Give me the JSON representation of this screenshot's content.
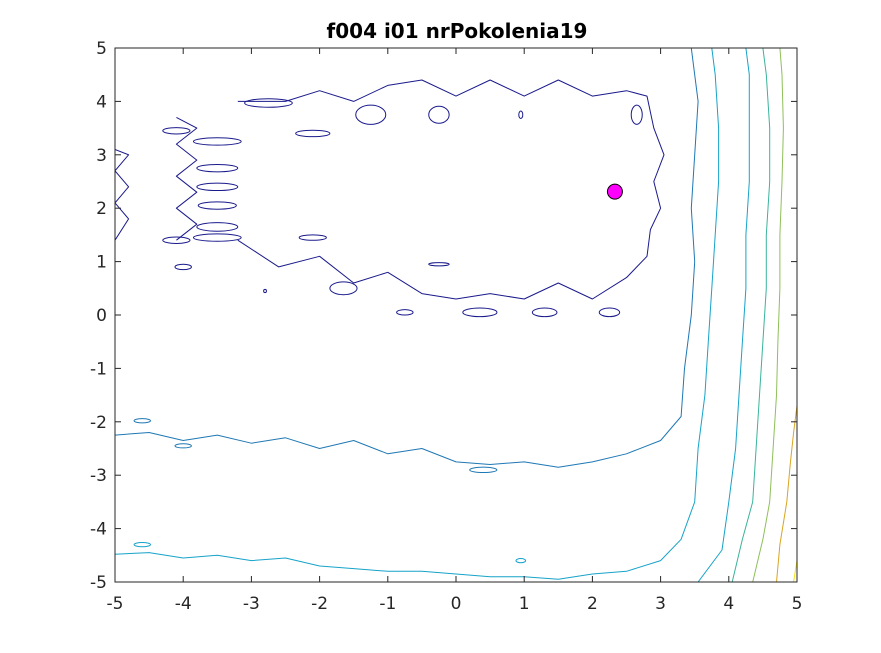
{
  "chart_data": {
    "type": "contour",
    "title": "f004 i01 nrPokolenia19",
    "xlabel": "",
    "ylabel": "",
    "xlim": [
      -5,
      5
    ],
    "ylim": [
      -5,
      5
    ],
    "xticks": [
      "-5",
      "-4",
      "-3",
      "-2",
      "-1",
      "0",
      "1",
      "2",
      "3",
      "4",
      "5"
    ],
    "yticks": [
      "5",
      "4",
      "3",
      "2",
      "1",
      "0",
      "-1",
      "-2",
      "-3",
      "-4",
      "-5"
    ],
    "grid": false,
    "colors": {
      "level1": "#1a1a8c",
      "level2": "#1f78b4",
      "level3": "#17a3c9",
      "level4": "#3ab39b",
      "level5": "#8fbf5a",
      "level6": "#d9a521",
      "level7": "#f2e21b",
      "marker": "#ff00ff"
    },
    "marker_point": {
      "x": 2.33,
      "y": 2.31
    },
    "contours": [
      {
        "level": "level1",
        "path": [
          [
            -3.2,
            1.4
          ],
          [
            -2.6,
            0.9
          ],
          [
            -2.0,
            1.1
          ],
          [
            -1.5,
            0.6
          ],
          [
            -1.0,
            0.8
          ],
          [
            -0.5,
            0.4
          ],
          [
            0,
            0.3
          ],
          [
            0.5,
            0.4
          ],
          [
            1.0,
            0.3
          ],
          [
            1.5,
            0.6
          ],
          [
            2.0,
            0.3
          ],
          [
            2.5,
            0.7
          ],
          [
            2.8,
            1.1
          ],
          [
            2.85,
            1.6
          ],
          [
            3.0,
            2.0
          ],
          [
            2.9,
            2.5
          ],
          [
            3.05,
            3.0
          ],
          [
            2.9,
            3.5
          ],
          [
            2.8,
            4.1
          ],
          [
            2.5,
            4.2
          ],
          [
            2.0,
            4.1
          ],
          [
            1.5,
            4.4
          ],
          [
            1.0,
            4.1
          ],
          [
            0.5,
            4.4
          ],
          [
            0,
            4.1
          ],
          [
            -0.5,
            4.4
          ],
          [
            -1.0,
            4.3
          ],
          [
            -1.5,
            4.0
          ],
          [
            -2.0,
            4.2
          ],
          [
            -2.5,
            4.0
          ],
          [
            -3.2,
            4.0
          ]
        ]
      },
      {
        "level": "level1",
        "path": [
          [
            -4.1,
            1.4
          ],
          [
            -3.8,
            1.7
          ],
          [
            -4.1,
            2.0
          ],
          [
            -3.8,
            2.3
          ],
          [
            -4.1,
            2.6
          ],
          [
            -3.8,
            2.9
          ],
          [
            -4.1,
            3.2
          ],
          [
            -3.8,
            3.5
          ],
          [
            -4.1,
            3.7
          ]
        ]
      },
      {
        "level": "level1",
        "path": [
          [
            -5,
            1.4
          ],
          [
            -4.8,
            1.8
          ],
          [
            -5,
            2.1
          ],
          [
            -4.8,
            2.4
          ],
          [
            -5,
            2.7
          ],
          [
            -4.8,
            3.0
          ],
          [
            -5,
            3.1
          ]
        ]
      },
      {
        "level": "level2",
        "path": [
          [
            -5,
            -2.25
          ],
          [
            -4.5,
            -2.2
          ],
          [
            -4,
            -2.35
          ],
          [
            -3.5,
            -2.25
          ],
          [
            -3,
            -2.4
          ],
          [
            -2.5,
            -2.3
          ],
          [
            -2,
            -2.5
          ],
          [
            -1.5,
            -2.35
          ],
          [
            -1,
            -2.6
          ],
          [
            -0.5,
            -2.5
          ],
          [
            0,
            -2.75
          ],
          [
            0.5,
            -2.8
          ],
          [
            1,
            -2.75
          ],
          [
            1.5,
            -2.85
          ],
          [
            2,
            -2.75
          ],
          [
            2.5,
            -2.6
          ],
          [
            3.0,
            -2.35
          ],
          [
            3.3,
            -1.9
          ],
          [
            3.35,
            -1.0
          ],
          [
            3.45,
            0
          ],
          [
            3.5,
            1.0
          ],
          [
            3.45,
            2.0
          ],
          [
            3.5,
            3.0
          ],
          [
            3.55,
            4.0
          ],
          [
            3.45,
            5.0
          ]
        ]
      },
      {
        "level": "level3",
        "path": [
          [
            -5,
            -4.48
          ],
          [
            -4.5,
            -4.45
          ],
          [
            -4,
            -4.55
          ],
          [
            -3.5,
            -4.5
          ],
          [
            -3,
            -4.6
          ],
          [
            -2.5,
            -4.55
          ],
          [
            -2,
            -4.7
          ],
          [
            -1.5,
            -4.75
          ],
          [
            -1,
            -4.8
          ],
          [
            -0.5,
            -4.8
          ],
          [
            0,
            -4.85
          ],
          [
            0.5,
            -4.9
          ],
          [
            1,
            -4.9
          ],
          [
            1.5,
            -4.95
          ],
          [
            2,
            -4.85
          ],
          [
            2.5,
            -4.8
          ],
          [
            3.0,
            -4.6
          ],
          [
            3.3,
            -4.2
          ],
          [
            3.5,
            -3.5
          ],
          [
            3.55,
            -2.5
          ],
          [
            3.65,
            -1.5
          ],
          [
            3.7,
            -0.5
          ],
          [
            3.75,
            0.5
          ],
          [
            3.8,
            1.5
          ],
          [
            3.85,
            2.5
          ],
          [
            3.85,
            3.5
          ],
          [
            3.8,
            4.5
          ],
          [
            3.75,
            5.0
          ]
        ]
      },
      {
        "level": "level3",
        "path": [
          [
            3.55,
            -5
          ],
          [
            3.9,
            -4.4
          ],
          [
            4.0,
            -3.5
          ],
          [
            4.1,
            -2.5
          ],
          [
            4.15,
            -1.5
          ],
          [
            4.2,
            -0.5
          ],
          [
            4.25,
            0.5
          ],
          [
            4.25,
            1.5
          ],
          [
            4.3,
            2.5
          ],
          [
            4.3,
            3.5
          ],
          [
            4.3,
            4.5
          ],
          [
            4.25,
            5
          ]
        ]
      },
      {
        "level": "level4",
        "path": [
          [
            4.05,
            -5
          ],
          [
            4.2,
            -4.2
          ],
          [
            4.35,
            -3.5
          ],
          [
            4.4,
            -2.5
          ],
          [
            4.45,
            -1.5
          ],
          [
            4.5,
            -0.5
          ],
          [
            4.55,
            0.5
          ],
          [
            4.55,
            1.5
          ],
          [
            4.6,
            2.5
          ],
          [
            4.6,
            3.5
          ],
          [
            4.55,
            4.5
          ],
          [
            4.5,
            5
          ]
        ]
      },
      {
        "level": "level5",
        "path": [
          [
            4.35,
            -5
          ],
          [
            4.5,
            -4.2
          ],
          [
            4.6,
            -3.5
          ],
          [
            4.65,
            -2.5
          ],
          [
            4.7,
            -1.5
          ],
          [
            4.72,
            -0.5
          ],
          [
            4.75,
            0.5
          ],
          [
            4.75,
            1.5
          ],
          [
            4.78,
            2.5
          ],
          [
            4.8,
            3.5
          ],
          [
            4.78,
            4.5
          ],
          [
            4.75,
            5
          ]
        ]
      },
      {
        "level": "level6",
        "path": [
          [
            4.7,
            -5
          ],
          [
            4.75,
            -4.3
          ],
          [
            4.85,
            -3.5
          ],
          [
            4.9,
            -2.8
          ],
          [
            4.95,
            -2.2
          ],
          [
            5,
            -1.7
          ]
        ]
      },
      {
        "level": "level7",
        "path": [
          [
            4.95,
            -5
          ],
          [
            5,
            -4.6
          ]
        ]
      }
    ],
    "islands": [
      {
        "level": "level1",
        "cx": -2.75,
        "cy": 3.97,
        "rx": 0.35,
        "ry": 0.08
      },
      {
        "level": "level1",
        "cx": -2.1,
        "cy": 3.4,
        "rx": 0.25,
        "ry": 0.06
      },
      {
        "level": "level1",
        "cx": -3.5,
        "cy": 3.25,
        "rx": 0.35,
        "ry": 0.07
      },
      {
        "level": "level1",
        "cx": -3.5,
        "cy": 2.75,
        "rx": 0.3,
        "ry": 0.07
      },
      {
        "level": "level1",
        "cx": -3.5,
        "cy": 2.4,
        "rx": 0.3,
        "ry": 0.07
      },
      {
        "level": "level1",
        "cx": -3.5,
        "cy": 2.05,
        "rx": 0.28,
        "ry": 0.07
      },
      {
        "level": "level1",
        "cx": -3.5,
        "cy": 1.65,
        "rx": 0.3,
        "ry": 0.08
      },
      {
        "level": "level1",
        "cx": -3.5,
        "cy": 1.45,
        "rx": 0.35,
        "ry": 0.07
      },
      {
        "level": "level1",
        "cx": -2.1,
        "cy": 1.45,
        "rx": 0.2,
        "ry": 0.05
      },
      {
        "level": "level1",
        "cx": -4.1,
        "cy": 3.45,
        "rx": 0.2,
        "ry": 0.06
      },
      {
        "level": "level1",
        "cx": -4.1,
        "cy": 1.4,
        "rx": 0.2,
        "ry": 0.06
      },
      {
        "level": "level1",
        "cx": -4.0,
        "cy": 0.9,
        "rx": 0.12,
        "ry": 0.05
      },
      {
        "level": "level1",
        "cx": -1.25,
        "cy": 3.75,
        "rx": 0.22,
        "ry": 0.18
      },
      {
        "level": "level1",
        "cx": -0.25,
        "cy": 3.75,
        "rx": 0.15,
        "ry": 0.16
      },
      {
        "level": "level1",
        "cx": 2.65,
        "cy": 3.75,
        "rx": 0.08,
        "ry": 0.18
      },
      {
        "level": "level1",
        "cx": 0.95,
        "cy": 3.75,
        "rx": 0.03,
        "ry": 0.07
      },
      {
        "level": "level1",
        "cx": -1.65,
        "cy": 0.5,
        "rx": 0.2,
        "ry": 0.12
      },
      {
        "level": "level1",
        "cx": -0.75,
        "cy": 0.05,
        "rx": 0.12,
        "ry": 0.05
      },
      {
        "level": "level1",
        "cx": 0.35,
        "cy": 0.05,
        "rx": 0.25,
        "ry": 0.08
      },
      {
        "level": "level1",
        "cx": 1.3,
        "cy": 0.05,
        "rx": 0.18,
        "ry": 0.08
      },
      {
        "level": "level1",
        "cx": 2.25,
        "cy": 0.05,
        "rx": 0.15,
        "ry": 0.08
      },
      {
        "level": "level1",
        "cx": -0.25,
        "cy": 0.95,
        "rx": 0.15,
        "ry": 0.03
      },
      {
        "level": "level1",
        "cx": -2.8,
        "cy": 0.45,
        "rx": 0.02,
        "ry": 0.03
      },
      {
        "level": "level2",
        "cx": -4.6,
        "cy": -1.98,
        "rx": 0.12,
        "ry": 0.04
      },
      {
        "level": "level2",
        "cx": -4.0,
        "cy": -2.45,
        "rx": 0.12,
        "ry": 0.04
      },
      {
        "level": "level2",
        "cx": 0.4,
        "cy": -2.9,
        "rx": 0.2,
        "ry": 0.05
      },
      {
        "level": "level3",
        "cx": -4.6,
        "cy": -4.3,
        "rx": 0.12,
        "ry": 0.04
      },
      {
        "level": "level3",
        "cx": 0.95,
        "cy": -4.6,
        "rx": 0.07,
        "ry": 0.04
      }
    ]
  }
}
